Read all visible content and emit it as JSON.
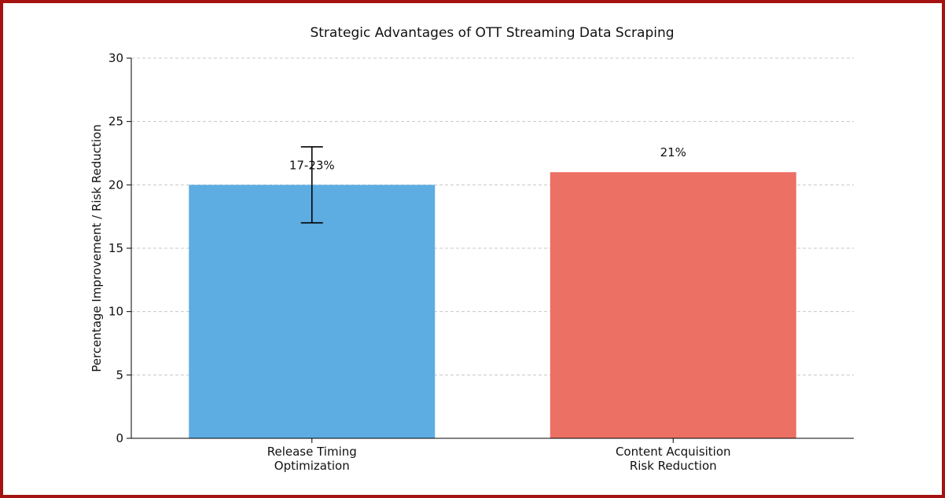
{
  "chart_data": {
    "type": "bar",
    "title": "Strategic Advantages of OTT Streaming Data Scraping",
    "xlabel": "",
    "ylabel": "Percentage Improvement / Risk Reduction",
    "ylim": [
      0,
      30
    ],
    "yticks": [
      0,
      5,
      10,
      15,
      20,
      25,
      30
    ],
    "grid": "y-dashed",
    "categories": [
      [
        "Release Timing",
        "Optimization"
      ],
      [
        "Content Acquisition",
        "Risk Reduction"
      ]
    ],
    "values": [
      20,
      21
    ],
    "error_ranges": [
      [
        17,
        23
      ],
      null
    ],
    "data_labels": [
      "17-23%",
      "21%"
    ],
    "colors": [
      "#5dade2",
      "#ec7063"
    ]
  },
  "frame_color": "#a51212"
}
